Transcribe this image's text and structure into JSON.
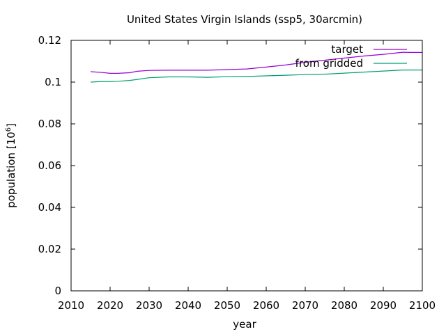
{
  "chart_data": {
    "type": "line",
    "title": "United States Virgin Islands (ssp5, 30arcmin)",
    "xlabel": "year",
    "ylabel_base": "population [10",
    "ylabel_exp": "6",
    "ylabel_close": "]",
    "xlim": [
      2010,
      2100
    ],
    "ylim": [
      0,
      0.12
    ],
    "xticks": [
      2010,
      2020,
      2030,
      2040,
      2050,
      2060,
      2070,
      2080,
      2090,
      2100
    ],
    "yticks": [
      0,
      0.02,
      0.04,
      0.06,
      0.08,
      0.1,
      0.12
    ],
    "ytick_labels": [
      "0",
      "0.02",
      "0.04",
      "0.06",
      "0.08",
      "0.1",
      "0.12"
    ],
    "legend_position": "top-right",
    "grid": false,
    "series": [
      {
        "name": "target",
        "color": "#9400d3",
        "x": [
          2015,
          2018,
          2020,
          2022,
          2025,
          2027,
          2030,
          2035,
          2040,
          2045,
          2050,
          2055,
          2060,
          2065,
          2070,
          2075,
          2080,
          2085,
          2090,
          2095,
          2097,
          2100
        ],
        "y": [
          0.105,
          0.1046,
          0.1042,
          0.1042,
          0.1045,
          0.1052,
          0.1056,
          0.1057,
          0.1057,
          0.1057,
          0.106,
          0.1063,
          0.1072,
          0.1082,
          0.1095,
          0.1105,
          0.1115,
          0.1125,
          0.1133,
          0.1143,
          0.1142,
          0.1142
        ]
      },
      {
        "name": "from gridded",
        "color": "#009e73",
        "x": [
          2015,
          2018,
          2020,
          2022,
          2025,
          2027,
          2030,
          2035,
          2040,
          2045,
          2050,
          2055,
          2060,
          2065,
          2070,
          2075,
          2080,
          2085,
          2090,
          2095,
          2097,
          2100
        ],
        "y": [
          0.1,
          0.1003,
          0.1003,
          0.1004,
          0.1008,
          0.1013,
          0.1021,
          0.1025,
          0.1025,
          0.1023,
          0.1026,
          0.1027,
          0.103,
          0.1033,
          0.1036,
          0.1038,
          0.1043,
          0.1048,
          0.1053,
          0.1058,
          0.1058,
          0.1058
        ]
      }
    ]
  }
}
